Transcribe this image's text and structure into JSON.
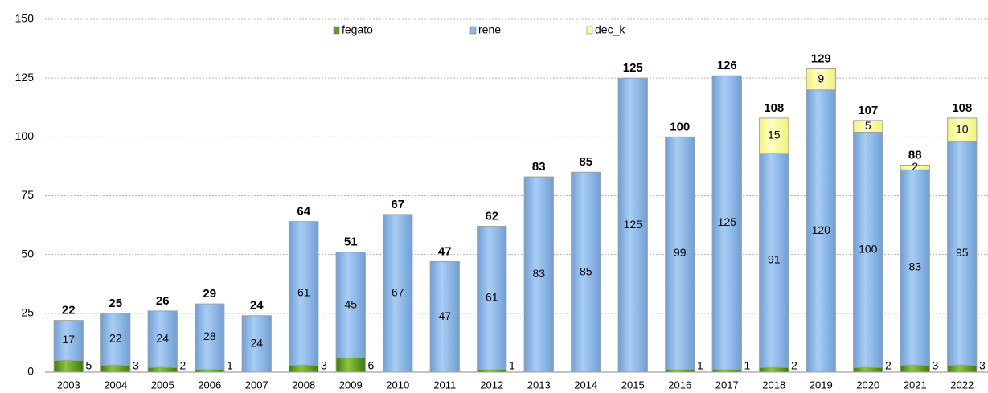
{
  "chart_data": {
    "type": "stacked-bar",
    "categories": [
      "2003",
      "2004",
      "2005",
      "2006",
      "2007",
      "2008",
      "2009",
      "2010",
      "2011",
      "2012",
      "2013",
      "2014",
      "2015",
      "2016",
      "2017",
      "2018",
      "2019",
      "2020",
      "2021",
      "2022"
    ],
    "series": [
      {
        "name": "fegato",
        "color": "#5e9e1c",
        "values": [
          5,
          3,
          2,
          1,
          null,
          3,
          6,
          null,
          null,
          1,
          null,
          null,
          null,
          1,
          1,
          2,
          null,
          2,
          3,
          3
        ]
      },
      {
        "name": "rene",
        "color": "#8fb9e6",
        "values": [
          17,
          22,
          24,
          28,
          24,
          61,
          45,
          67,
          47,
          61,
          83,
          85,
          125,
          99,
          125,
          91,
          120,
          100,
          83,
          95
        ]
      },
      {
        "name": "dec_k",
        "color": "#ffff9c",
        "values": [
          null,
          null,
          null,
          null,
          null,
          null,
          null,
          null,
          null,
          null,
          null,
          null,
          null,
          null,
          null,
          15,
          9,
          5,
          2,
          10
        ]
      }
    ],
    "totals": [
      22,
      25,
      26,
      29,
      24,
      64,
      51,
      67,
      47,
      62,
      83,
      85,
      125,
      100,
      126,
      108,
      129,
      107,
      88,
      108
    ],
    "ylim": [
      0,
      150
    ],
    "yticks": [
      0,
      25,
      50,
      75,
      100,
      125,
      150
    ],
    "grid": true
  }
}
